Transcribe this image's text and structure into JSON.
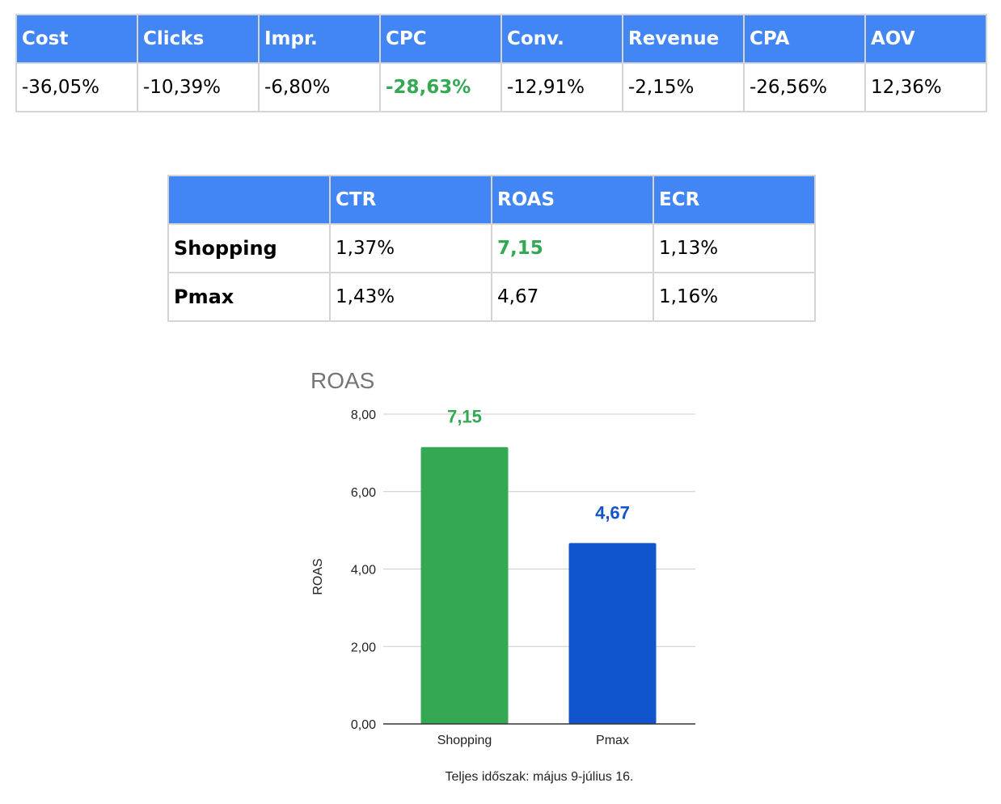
{
  "metrics_table": {
    "headers": [
      "Cost",
      "Clicks",
      "Impr.",
      "CPC",
      "Conv.",
      "Revenue",
      "CPA",
      "AOV"
    ],
    "values": [
      "-36,05%",
      "-10,39%",
      "-6,80%",
      "-28,63%",
      "-12,91%",
      "-2,15%",
      "-26,56%",
      "12,36%"
    ],
    "highlight_index": 3,
    "header_color": "#4285f4",
    "highlight_color": "#34a853"
  },
  "channel_table": {
    "headers": [
      "",
      "CTR",
      "ROAS",
      "ECR"
    ],
    "rows": [
      {
        "label": "Shopping",
        "ctr": "1,37%",
        "roas": "7,15",
        "ecr": "1,13%"
      },
      {
        "label": "Pmax",
        "ctr": "1,43%",
        "roas": "4,67",
        "ecr": "1,16%"
      }
    ],
    "highlight_cell": {
      "row": 0,
      "col": "roas"
    }
  },
  "chart_data": {
    "type": "bar",
    "title": "ROAS",
    "xlabel": "",
    "ylabel": "ROAS",
    "categories": [
      "Shopping",
      "Pmax"
    ],
    "values": [
      7.15,
      4.67
    ],
    "value_labels": [
      "7,15",
      "4,67"
    ],
    "colors": [
      "#34a853",
      "#1155cc"
    ],
    "ylim": [
      0,
      8
    ],
    "yticks": [
      0,
      2,
      4,
      6,
      8
    ],
    "ytick_labels": [
      "0,00",
      "2,00",
      "4,00",
      "6,00",
      "8,00"
    ],
    "grid": true,
    "legend": "none",
    "footnote": "Teljes időszak: május 9-július 16."
  }
}
